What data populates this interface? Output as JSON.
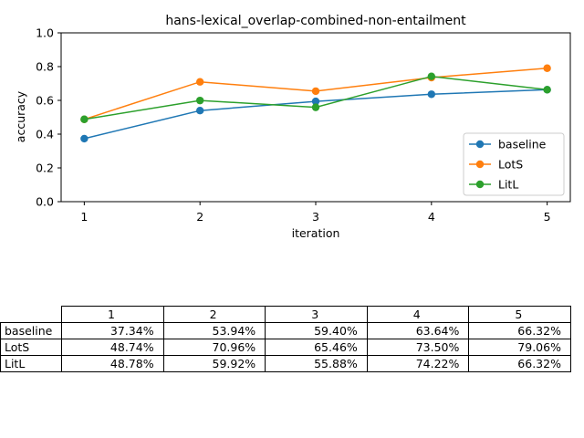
{
  "chart_data": {
    "type": "line",
    "title": "hans-lexical_overlap-combined-non-entailment",
    "xlabel": "iteration",
    "ylabel": "accuracy",
    "x": [
      1,
      2,
      3,
      4,
      5
    ],
    "ylim": [
      0,
      1
    ],
    "yticks": [
      "0.0",
      "0.2",
      "0.4",
      "0.6",
      "0.8",
      "1.0"
    ],
    "grid": false,
    "legend_position": "lower-right",
    "series": [
      {
        "name": "baseline",
        "color": "#1f77b4",
        "values": [
          0.3734,
          0.5394,
          0.594,
          0.6364,
          0.6632
        ]
      },
      {
        "name": "LotS",
        "color": "#ff7f0e",
        "values": [
          0.4874,
          0.7096,
          0.6546,
          0.735,
          0.7906
        ]
      },
      {
        "name": "LitL",
        "color": "#2ca02c",
        "values": [
          0.4878,
          0.5992,
          0.5588,
          0.7422,
          0.6632
        ]
      }
    ]
  },
  "table": {
    "columns": [
      "1",
      "2",
      "3",
      "4",
      "5"
    ],
    "rows": [
      {
        "label": "baseline",
        "cells": [
          "37.34%",
          "53.94%",
          "59.40%",
          "63.64%",
          "66.32%"
        ]
      },
      {
        "label": "LotS",
        "cells": [
          "48.74%",
          "70.96%",
          "65.46%",
          "73.50%",
          "79.06%"
        ]
      },
      {
        "label": "LitL",
        "cells": [
          "48.78%",
          "59.92%",
          "55.88%",
          "74.22%",
          "66.32%"
        ]
      }
    ]
  }
}
